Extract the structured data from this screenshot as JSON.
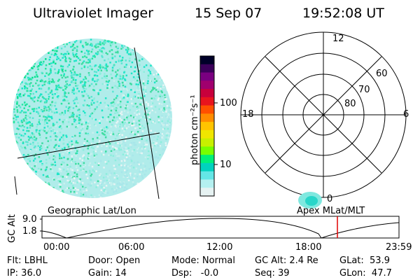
{
  "header": {
    "instrument": "Ultraviolet Imager",
    "date": "15 Sep 07",
    "time": "19:52:08 UT"
  },
  "colorbar": {
    "unit_label": "photon cm⁻²s⁻¹",
    "ticks": [
      "100",
      "10"
    ],
    "colors": [
      "#000028",
      "#3c005a",
      "#7a0080",
      "#a0006e",
      "#c8003c",
      "#e8141e",
      "#ff5000",
      "#ff8c00",
      "#ffc400",
      "#f0e600",
      "#c8f000",
      "#78ff00",
      "#00f078",
      "#00d2be",
      "#64e6e6",
      "#b4f0f0",
      "#e6f2f2"
    ]
  },
  "polar_plot": {
    "hour_labels": [
      "12",
      "18",
      "6",
      "0"
    ],
    "lat_labels": [
      "60",
      "70",
      "80"
    ]
  },
  "strip": {
    "y_axis_title": "GC Alt",
    "y_ticks": [
      "9.0",
      "1.8"
    ],
    "left_title": "Geographic Lat/Lon",
    "right_title": "Apex MLat/MLT",
    "x_ticks": [
      "00:00",
      "06:00",
      "12:00",
      "18:00",
      "23:59"
    ],
    "marker_color": "#e00000"
  },
  "status": {
    "flt": "Flt: LBHL",
    "ip": "IP: 36.0",
    "door": "Door: Open",
    "gain": "Gain: 14",
    "mode": "Mode: Normal",
    "dsp": "Dsp:   -0.0",
    "gc_alt": "GC Alt: 2.4 Re",
    "seq": "Seq: 39",
    "glat": "GLat:  53.9",
    "glon": "GLon:  47.7"
  }
}
